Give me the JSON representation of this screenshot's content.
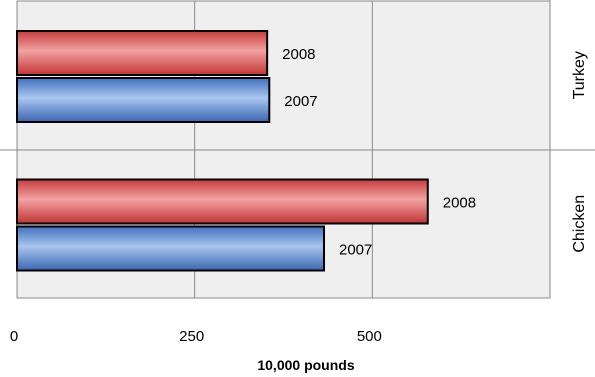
{
  "chart_data": {
    "type": "bar",
    "orientation": "horizontal",
    "categories": [
      "Turkey",
      "Chicken"
    ],
    "series": [
      {
        "name": "2008",
        "values": [
          352,
          578
        ],
        "color": "#e06a6a"
      },
      {
        "name": "2007",
        "values": [
          355,
          432
        ],
        "color": "#6f9bd8"
      }
    ],
    "data_labels": [
      "2008",
      "2007"
    ],
    "xlabel": "10,000 pounds",
    "xlim": [
      0,
      750
    ],
    "xticks": [
      0,
      250,
      500
    ],
    "grid": true,
    "category_label_position": "right",
    "plot_background": "#efefef",
    "gridline_color": "#8a8a8a"
  }
}
